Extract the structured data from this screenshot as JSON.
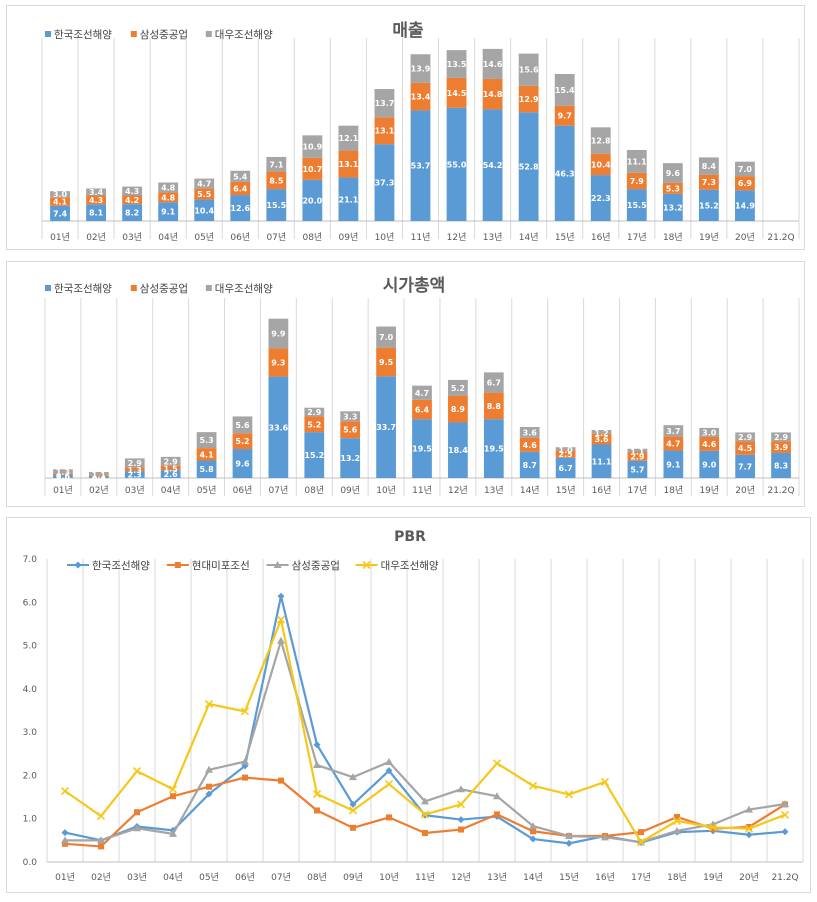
{
  "chart_data": [
    {
      "type": "bar",
      "stacked": true,
      "title": "매출",
      "legend_position": "top-left",
      "categories": [
        "01년",
        "02년",
        "03년",
        "04년",
        "05년",
        "06년",
        "07년",
        "08년",
        "09년",
        "10년",
        "11년",
        "12년",
        "13년",
        "14년",
        "15년",
        "16년",
        "17년",
        "18년",
        "19년",
        "20년",
        "21.2Q"
      ],
      "series": [
        {
          "name": "한국조선해양",
          "color": "#5b9bd5",
          "values": [
            7.4,
            8.1,
            8.2,
            9.1,
            10.4,
            12.6,
            15.5,
            20.0,
            21.1,
            37.3,
            53.7,
            55.0,
            54.2,
            52.8,
            46.3,
            22.3,
            15.5,
            13.2,
            15.2,
            14.9,
            null
          ]
        },
        {
          "name": "삼성중공업",
          "color": "#ed7d31",
          "values": [
            4.1,
            4.3,
            4.2,
            4.8,
            5.5,
            6.4,
            8.5,
            10.7,
            13.1,
            13.1,
            13.4,
            14.5,
            14.8,
            12.9,
            9.7,
            10.4,
            7.9,
            5.3,
            7.3,
            6.9,
            null
          ]
        },
        {
          "name": "대우조선해양",
          "color": "#a5a5a5",
          "values": [
            3.0,
            3.4,
            4.3,
            4.8,
            4.7,
            5.4,
            7.1,
            10.9,
            12.1,
            13.7,
            13.9,
            13.5,
            14.6,
            15.6,
            15.4,
            12.8,
            11.1,
            9.6,
            8.4,
            7.0,
            null
          ]
        }
      ],
      "value_labels": {
        "한국조선해양": [
          "7.4",
          "8.1",
          "8.2",
          "9.1",
          "10.4",
          "12.6",
          "15.5",
          "20.0",
          "21.1",
          "37.3",
          "53.7",
          "55.0",
          "54.2",
          "52.8",
          "46.3",
          "22.3",
          "15.5",
          "13.2",
          "15.2",
          "14.9",
          ""
        ],
        "삼성중공업": [
          "4.1",
          "4.3",
          "4.2",
          "4.8",
          "5.5",
          "6.4",
          "8.5",
          "10.7",
          "13.1",
          "13.1",
          "13.4",
          "14.5",
          "14.8",
          "12.9",
          "9.7",
          "10.4",
          "7.9",
          "5.3",
          "7.3",
          "6.9",
          ""
        ],
        "대우조선해양": [
          "3.0",
          "3.4",
          "4.3",
          "4.8",
          "4.7",
          "5.4",
          "7.1",
          "10.9",
          "12.1",
          "13.7",
          "13.9",
          "13.5",
          "14.6",
          "15.6",
          "15.4",
          "12.8",
          "11.1",
          "9.6",
          "8.4",
          "7.0",
          ""
        ]
      },
      "ylim": [
        0,
        85
      ],
      "grid": false
    },
    {
      "type": "bar",
      "stacked": true,
      "title": "시가총액",
      "legend_position": "top-left",
      "categories": [
        "01년",
        "02년",
        "03년",
        "04년",
        "05년",
        "06년",
        "07년",
        "08년",
        "09년",
        "10년",
        "11년",
        "12년",
        "13년",
        "14년",
        "15년",
        "16년",
        "17년",
        "18년",
        "19년",
        "20년",
        "21.2Q"
      ],
      "series": [
        {
          "name": "한국조선해양",
          "color": "#5b9bd5",
          "values": [
            1.0,
            0.5,
            2.3,
            2.6,
            5.8,
            9.6,
            33.6,
            15.2,
            13.2,
            33.7,
            19.5,
            18.4,
            19.5,
            8.7,
            6.7,
            11.1,
            5.7,
            9.1,
            9.0,
            7.7,
            8.3
          ]
        },
        {
          "name": "삼성중공업",
          "color": "#ed7d31",
          "values": [
            0.6,
            0.4,
            1.3,
            1.5,
            4.1,
            5.2,
            9.3,
            5.2,
            5.6,
            9.5,
            6.4,
            8.9,
            8.8,
            4.6,
            2.5,
            3.6,
            2.9,
            4.7,
            4.6,
            4.5,
            3.9
          ]
        },
        {
          "name": "대우조선해양",
          "color": "#a5a5a5",
          "values": [
            1.3,
            1.1,
            2.9,
            2.9,
            5.3,
            5.6,
            9.9,
            2.9,
            3.3,
            7.0,
            4.7,
            5.2,
            6.7,
            3.6,
            1.0,
            1.2,
            1.1,
            3.7,
            3.0,
            2.9,
            2.9
          ]
        }
      ],
      "value_labels": {
        "한국조선해양": [
          "1.0",
          "0.5",
          "2.3",
          "2.6",
          "5.8",
          "9.6",
          "33.6",
          "15.2",
          "13.2",
          "33.7",
          "19.5",
          "18.4",
          "19.5",
          "8.7",
          "6.7",
          "11.1",
          "5.7",
          "9.1",
          "9.0",
          "7.7",
          "8.3"
        ],
        "삼성중공업": [
          "0.6",
          "0.4",
          "1.3",
          "1.5",
          "4.1",
          "5.2",
          "9.3",
          "5.2",
          "5.6",
          "9.5",
          "6.4",
          "8.9",
          "8.8",
          "4.6",
          "2.5",
          "3.6",
          "2.9",
          "4.7",
          "4.6",
          "4.5",
          "3.9"
        ],
        "대우조선해양": [
          "1.3",
          "1.1",
          "2.9",
          "2.9",
          "5.3",
          "5.6",
          "9.9",
          "2.9",
          "3.3",
          "7.0",
          "4.7",
          "5.2",
          "6.7",
          "3.6",
          "1.0",
          "1.2",
          "1.1",
          "3.7",
          "3.0",
          "2.9",
          "2.9"
        ]
      },
      "ylim": [
        0,
        57
      ],
      "grid": false
    },
    {
      "type": "line",
      "title": "PBR",
      "legend_position": "top-left",
      "x": [
        "01년",
        "02년",
        "03년",
        "04년",
        "05년",
        "06년",
        "07년",
        "08년",
        "09년",
        "10년",
        "11년",
        "12년",
        "13년",
        "14년",
        "15년",
        "16년",
        "17년",
        "18년",
        "19년",
        "20년",
        "21.2Q"
      ],
      "series": [
        {
          "name": "한국조선해양",
          "color": "#5b9bd5",
          "marker": "diamond",
          "values": [
            0.68,
            0.5,
            0.82,
            0.73,
            1.57,
            2.22,
            6.14,
            2.71,
            1.33,
            2.11,
            1.08,
            0.98,
            1.05,
            0.53,
            0.43,
            0.6,
            0.45,
            0.69,
            0.72,
            0.63,
            0.7
          ]
        },
        {
          "name": "현대미포조선",
          "color": "#ed7d31",
          "marker": "square",
          "values": [
            0.42,
            0.36,
            1.15,
            1.52,
            1.74,
            1.95,
            1.88,
            1.19,
            0.79,
            1.03,
            0.67,
            0.75,
            1.1,
            0.71,
            0.6,
            0.6,
            0.69,
            1.04,
            0.77,
            0.81,
            1.33
          ]
        },
        {
          "name": "삼성중공업",
          "color": "#a5a5a5",
          "marker": "triangle",
          "values": [
            0.5,
            0.5,
            0.78,
            0.65,
            2.13,
            2.32,
            5.11,
            2.24,
            1.96,
            2.31,
            1.4,
            1.68,
            1.52,
            0.83,
            0.6,
            0.57,
            0.46,
            0.72,
            0.87,
            1.21,
            1.34
          ]
        },
        {
          "name": "대우조선해양",
          "color": "#f5c818",
          "marker": "x",
          "values": [
            1.64,
            1.06,
            2.1,
            1.68,
            3.65,
            3.48,
            5.6,
            1.57,
            1.19,
            1.8,
            1.1,
            1.33,
            2.28,
            1.76,
            1.56,
            1.85,
            0.46,
            0.95,
            0.8,
            0.77,
            1.09
          ]
        }
      ],
      "ylim": [
        0.0,
        7.0
      ],
      "yticks": [
        "0.0",
        "1.0",
        "2.0",
        "3.0",
        "4.0",
        "5.0",
        "6.0",
        "7.0"
      ],
      "grid": true
    }
  ]
}
